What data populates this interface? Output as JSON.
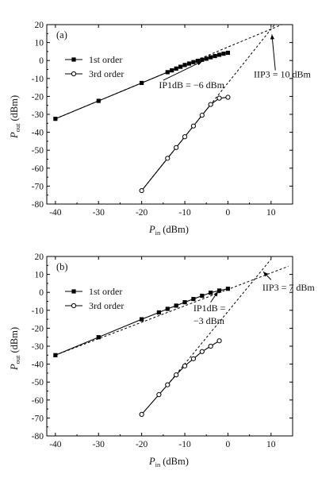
{
  "chart_data": [
    {
      "type": "line",
      "panel_label": "(a)",
      "xlabel_main": "P",
      "xlabel_sub": "in",
      "xlabel_unit": "(dBm)",
      "ylabel_main": "P",
      "ylabel_sub": "out",
      "ylabel_unit": "(dBm)",
      "xlim": [
        -42,
        15
      ],
      "ylim": [
        -80,
        20
      ],
      "xticks": [
        -40,
        -30,
        -20,
        -10,
        0,
        10
      ],
      "yticks": [
        20,
        10,
        0,
        -10,
        -20,
        -30,
        -40,
        -50,
        -60,
        -70,
        -80
      ],
      "legend_position": "upper-left",
      "series": [
        {
          "name": "1st order",
          "marker": "filled-square",
          "x": [
            -40,
            -30,
            -20,
            -14,
            -13,
            -12,
            -11,
            -10,
            -9,
            -8,
            -7,
            -6,
            -5,
            -4,
            -3,
            -2,
            -1,
            0
          ],
          "y": [
            -32.5,
            -22.5,
            -12.5,
            -6.5,
            -5.5,
            -4.5,
            -3.5,
            -2.5,
            -1.7,
            -0.9,
            -0.2,
            0.4,
            1.0,
            1.8,
            2.5,
            3.2,
            3.8,
            4.3
          ]
        },
        {
          "name": "3rd order",
          "marker": "open-circle",
          "x": [
            -20,
            -14,
            -12,
            -10,
            -8,
            -6,
            -4,
            -2,
            0
          ],
          "y": [
            -72.5,
            -54.5,
            -48.5,
            -42.5,
            -36.5,
            -30.5,
            -24.5,
            -21.0,
            -20.5
          ]
        }
      ],
      "extrapolations": [
        {
          "x": [
            -40,
            14
          ],
          "y": [
            -32.5,
            21.5
          ]
        },
        {
          "x": [
            -20,
            14
          ],
          "y": [
            -72.5,
            29.5
          ]
        }
      ],
      "annotations": [
        {
          "text": "IP1dB = −6 dBm",
          "text_at": [
            -16,
            -15.5
          ],
          "arrow_from": [
            -15,
            -11
          ],
          "arrow_to": [
            -6,
            -0.5
          ]
        },
        {
          "text": "IIP3 = 10 dBm",
          "text_at": [
            6,
            -9.5
          ],
          "arrow_from": [
            11,
            -5.5
          ],
          "arrow_to": [
            10.2,
            14.5
          ]
        }
      ]
    },
    {
      "type": "line",
      "panel_label": "(b)",
      "xlabel_main": "P",
      "xlabel_sub": "in",
      "xlabel_unit": "(dBm)",
      "ylabel_main": "P",
      "ylabel_sub": "out",
      "ylabel_unit": "(dBm)",
      "xlim": [
        -42,
        15
      ],
      "ylim": [
        -80,
        20
      ],
      "xticks": [
        -40,
        -30,
        -20,
        -10,
        0,
        10
      ],
      "yticks": [
        20,
        10,
        0,
        -10,
        -20,
        -30,
        -40,
        -50,
        -60,
        -70,
        -80
      ],
      "legend_position": "upper-left",
      "series": [
        {
          "name": "1st order",
          "marker": "filled-square",
          "x": [
            -40,
            -30,
            -20,
            -16,
            -14,
            -12,
            -10,
            -8,
            -6,
            -4,
            -2,
            0
          ],
          "y": [
            -35,
            -25,
            -15,
            -11.2,
            -9.2,
            -7.4,
            -5.5,
            -3.7,
            -1.9,
            -0.2,
            1.0,
            2.0
          ]
        },
        {
          "name": "3rd order",
          "marker": "open-circle",
          "x": [
            -20,
            -16,
            -14,
            -12,
            -10,
            -8,
            -6,
            -4,
            -2
          ],
          "y": [
            -68,
            -57,
            -51.5,
            -46,
            -41,
            -37,
            -33,
            -30,
            -27
          ]
        }
      ],
      "extrapolations": [
        {
          "x": [
            -40,
            14
          ],
          "y": [
            -35,
            14.5
          ]
        },
        {
          "x": [
            -14,
            10
          ],
          "y": [
            -51.5,
            18.5
          ]
        }
      ],
      "annotations": [
        {
          "text": "IP1dB =",
          "text_at": [
            -8,
            -10.5
          ],
          "arrow_from": [
            -4,
            -5.5
          ],
          "arrow_to": [
            -2.3,
            0.5
          ]
        },
        {
          "text": "−3 dBm",
          "text_at": [
            -8,
            -17.5
          ]
        },
        {
          "text": "IIP3 = 7 dBm",
          "text_at": [
            8,
            1
          ],
          "arrow_from": [
            10,
            7
          ],
          "arrow_to": [
            8.2,
            11.5
          ]
        }
      ]
    }
  ]
}
